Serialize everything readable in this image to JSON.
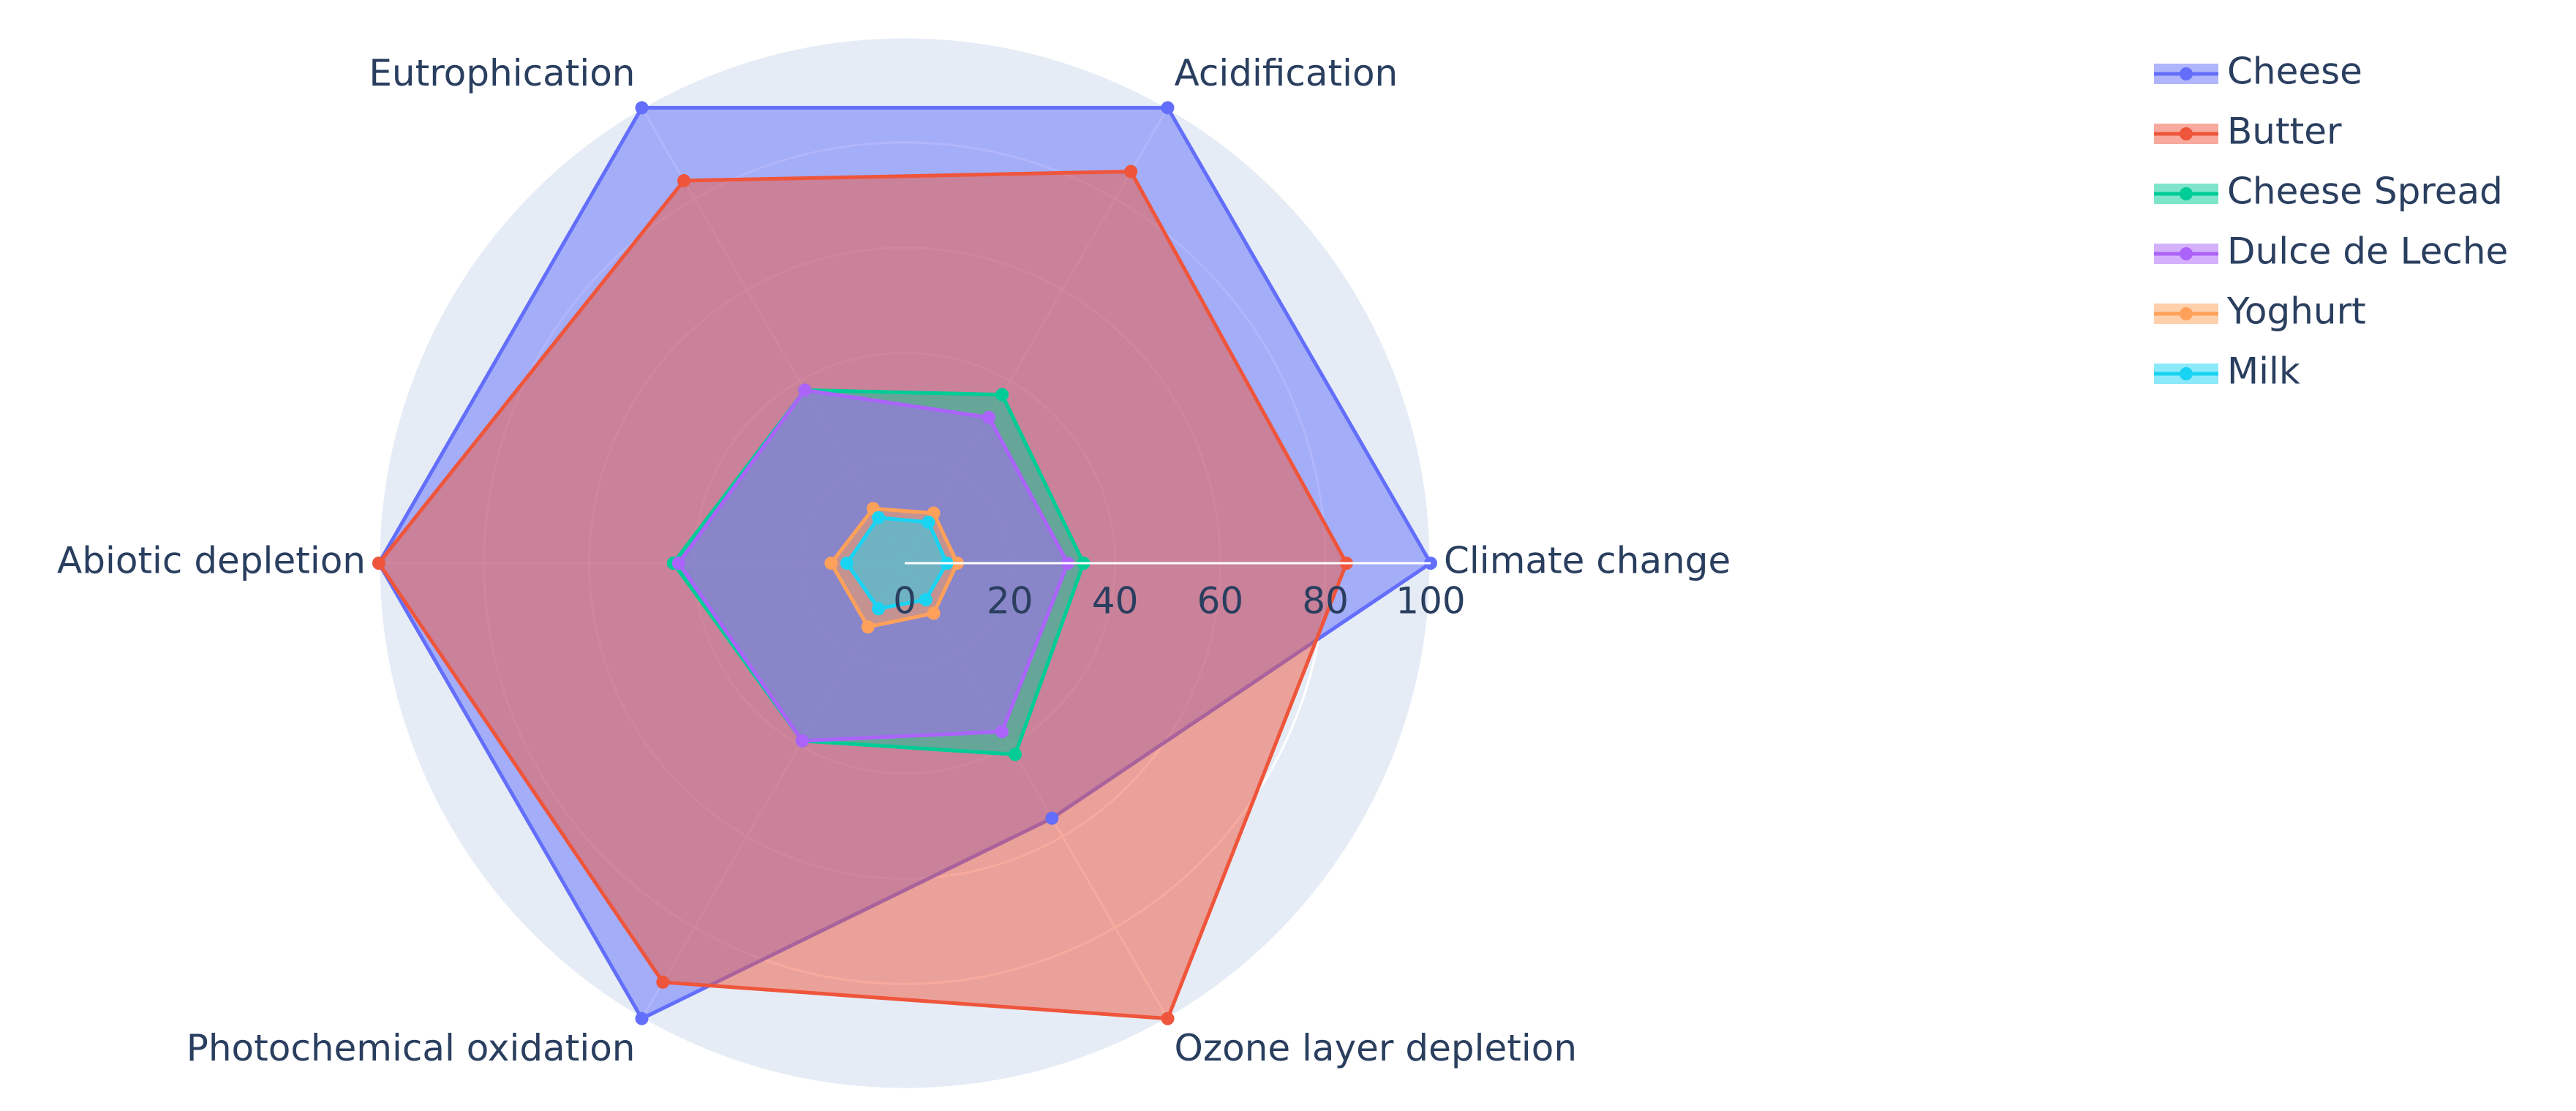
{
  "chart_data": {
    "type": "radar",
    "categories": [
      "Climate change",
      "Acidification",
      "Eutrophication",
      "Abiotic depletion",
      "Photochemical oxidation",
      "Ozone layer depletion"
    ],
    "series": [
      {
        "name": "Cheese",
        "color": "#636efa",
        "values": [
          100,
          100,
          100,
          100,
          100,
          56
        ]
      },
      {
        "name": "Butter",
        "color": "#ef553b",
        "values": [
          84,
          86,
          84,
          100,
          92,
          100
        ]
      },
      {
        "name": "Cheese Spread",
        "color": "#00cc96",
        "values": [
          34,
          37,
          38,
          44,
          39,
          42
        ]
      },
      {
        "name": "Dulce de Leche",
        "color": "#ab63fa",
        "values": [
          31,
          32,
          38,
          43,
          39,
          37
        ]
      },
      {
        "name": "Yoghurt",
        "color": "#ffa15a",
        "values": [
          10,
          11,
          12,
          14,
          14,
          11
        ]
      },
      {
        "name": "Milk",
        "color": "#19d3f3",
        "values": [
          8,
          9,
          10,
          11,
          10,
          8
        ]
      }
    ],
    "rlim": [
      0,
      100
    ],
    "rticks": [
      0,
      20,
      40,
      60,
      80,
      100
    ],
    "grid": true
  }
}
